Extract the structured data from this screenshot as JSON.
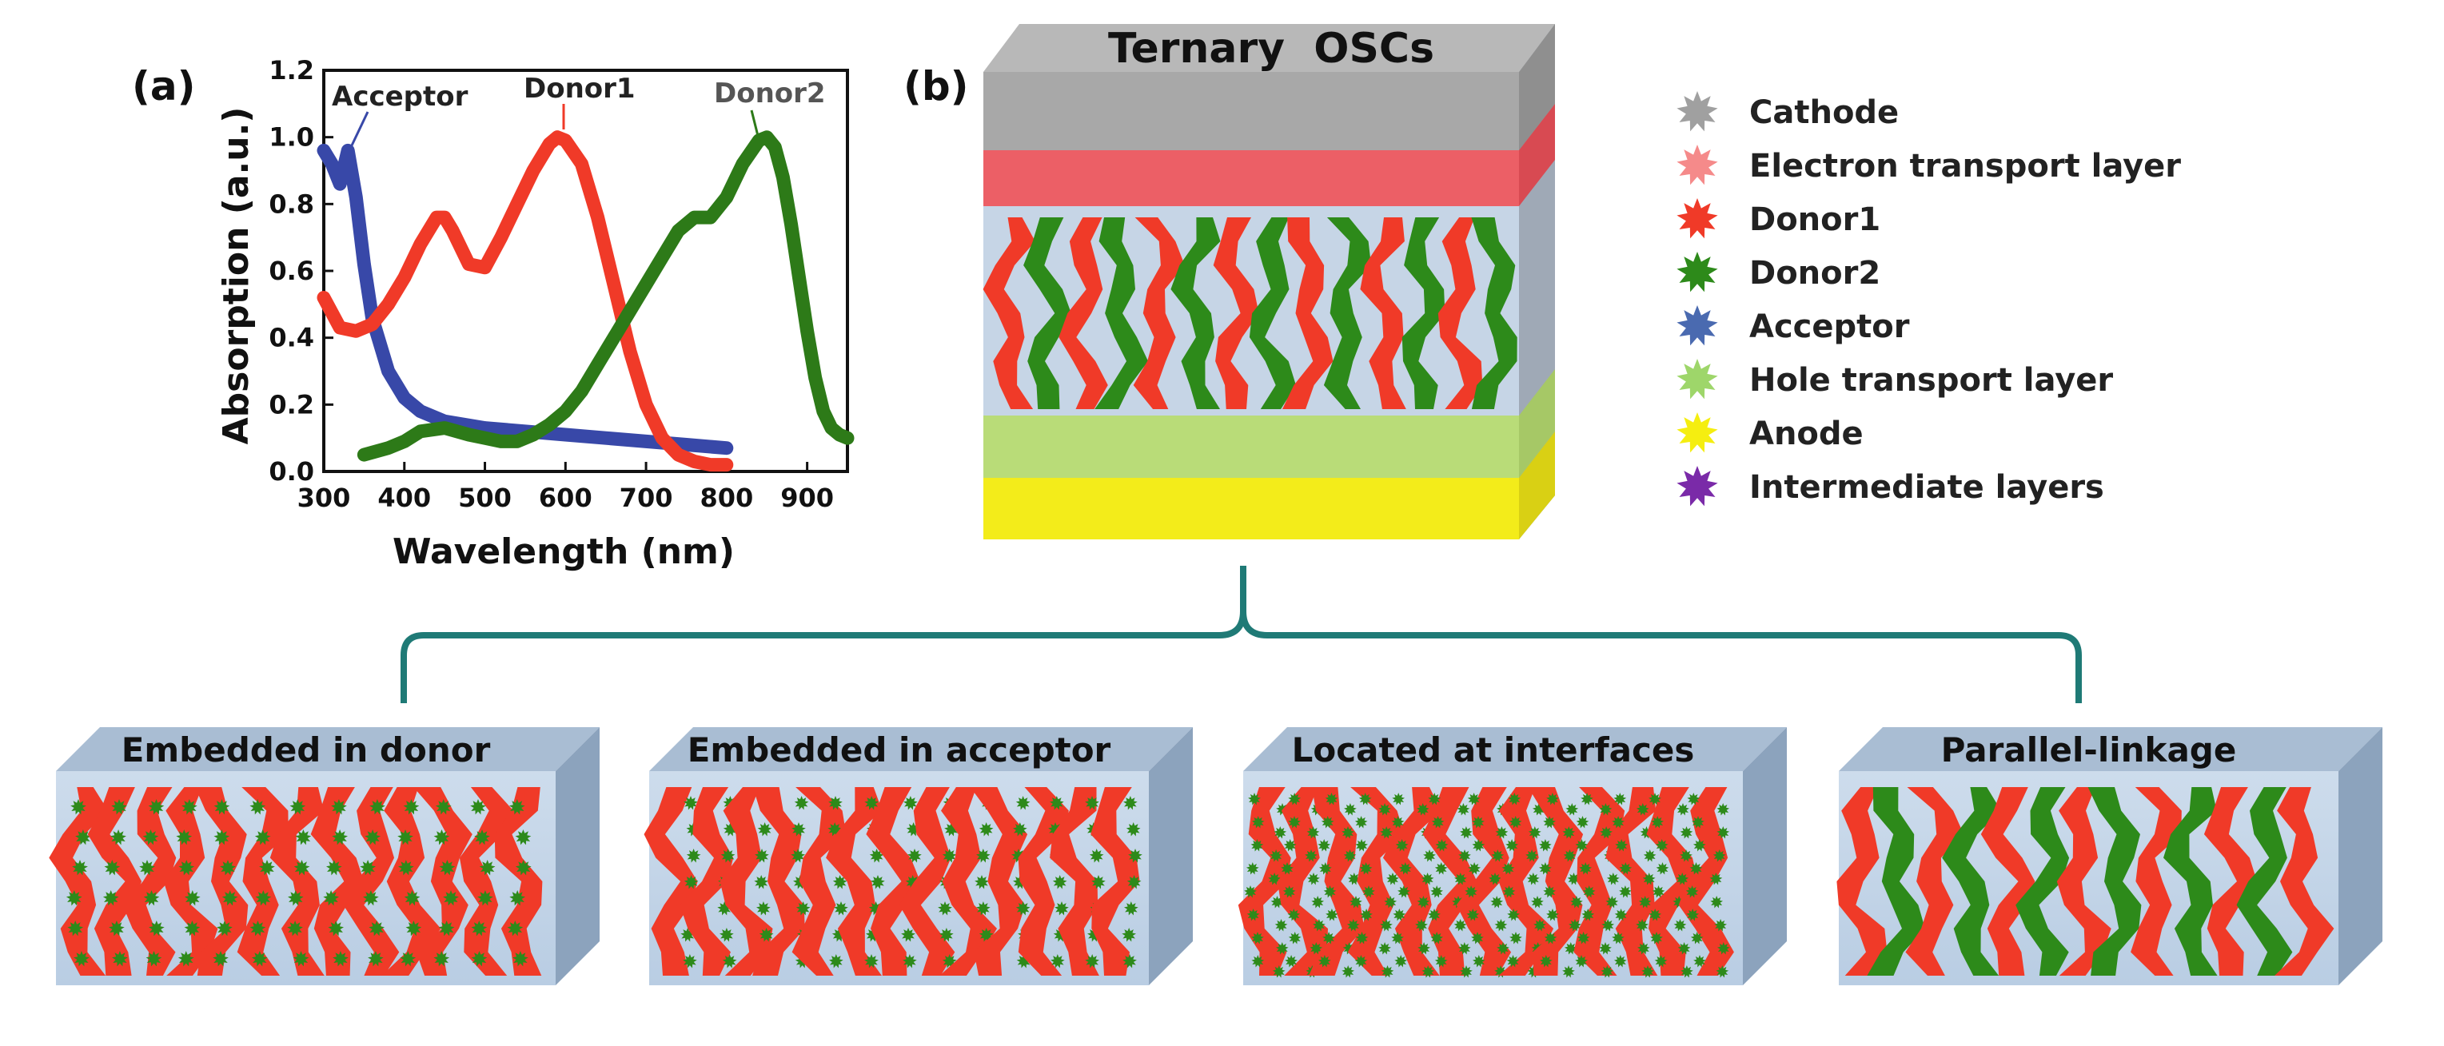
{
  "panel_a": {
    "label": "(a)",
    "chart_data": {
      "type": "line",
      "title": "",
      "xlabel": "Wavelength (nm)",
      "ylabel": "Absorption (a.u.)",
      "xlim": [
        300,
        950
      ],
      "ylim": [
        0,
        1.2
      ],
      "xticks": [
        "300",
        "400",
        "500",
        "600",
        "700",
        "800",
        "900"
      ],
      "yticks": [
        "0.0",
        "0.2",
        "0.4",
        "0.6",
        "0.8",
        "1.0",
        "1.2"
      ],
      "annotations": [
        "Acceptor",
        "Donor1",
        "Donor2"
      ],
      "series": [
        {
          "name": "Acceptor",
          "color": "#3848a8",
          "x": [
            300,
            310,
            320,
            330,
            340,
            350,
            360,
            380,
            400,
            420,
            450,
            500,
            550,
            600,
            650,
            700,
            750,
            800
          ],
          "y": [
            0.96,
            0.92,
            0.86,
            0.96,
            0.82,
            0.62,
            0.46,
            0.3,
            0.22,
            0.18,
            0.15,
            0.13,
            0.12,
            0.11,
            0.1,
            0.09,
            0.08,
            0.07
          ]
        },
        {
          "name": "Donor1",
          "color": "#f03a28",
          "x": [
            300,
            320,
            340,
            360,
            380,
            400,
            420,
            440,
            450,
            460,
            480,
            500,
            520,
            540,
            560,
            580,
            590,
            600,
            620,
            640,
            660,
            680,
            700,
            720,
            740,
            760,
            780,
            800
          ],
          "y": [
            0.52,
            0.43,
            0.42,
            0.44,
            0.5,
            0.58,
            0.68,
            0.76,
            0.76,
            0.72,
            0.62,
            0.61,
            0.7,
            0.8,
            0.9,
            0.98,
            1.0,
            0.99,
            0.92,
            0.76,
            0.56,
            0.36,
            0.2,
            0.1,
            0.05,
            0.03,
            0.02,
            0.02
          ]
        },
        {
          "name": "Donor2",
          "color": "#2d7a18",
          "x": [
            350,
            380,
            400,
            420,
            450,
            480,
            500,
            520,
            540,
            560,
            580,
            600,
            620,
            640,
            660,
            680,
            700,
            720,
            740,
            760,
            780,
            800,
            820,
            840,
            850,
            860,
            870,
            880,
            890,
            900,
            910,
            920,
            930,
            940,
            950
          ],
          "y": [
            0.05,
            0.07,
            0.09,
            0.12,
            0.13,
            0.11,
            0.1,
            0.09,
            0.09,
            0.11,
            0.14,
            0.18,
            0.24,
            0.32,
            0.4,
            0.48,
            0.56,
            0.64,
            0.72,
            0.76,
            0.76,
            0.82,
            0.92,
            0.99,
            1.0,
            0.97,
            0.88,
            0.74,
            0.58,
            0.42,
            0.28,
            0.18,
            0.13,
            0.11,
            0.1
          ]
        }
      ]
    }
  },
  "panel_b": {
    "label": "(b)",
    "device_title": "Ternary  OSCs",
    "legend": [
      {
        "label": "Cathode",
        "color": "#a0a0a0"
      },
      {
        "label": "Electron transport layer",
        "color": "#f58a8a"
      },
      {
        "label": "Donor1",
        "color": "#f03a28"
      },
      {
        "label": "Donor2",
        "color": "#2d8a1a"
      },
      {
        "label": "Acceptor",
        "color": "#4a6ab0"
      },
      {
        "label": "Hole transport layer",
        "color": "#9ed66a"
      },
      {
        "label": "Anode",
        "color": "#f5ee10"
      },
      {
        "label": "Intermediate layers",
        "color": "#7a2aa8"
      }
    ]
  },
  "modes": [
    {
      "title": "Embedded in donor"
    },
    {
      "title": "Embedded in acceptor"
    },
    {
      "title": "Located at interfaces"
    },
    {
      "title": "Parallel-linkage"
    }
  ],
  "colors": {
    "bracket": "#1f7a76",
    "block_front": "#c9d9ea",
    "block_top": "#a9bdd3",
    "block_side": "#8ca3bd",
    "donor1": "#f03a28",
    "donor2": "#2d8a1a"
  }
}
